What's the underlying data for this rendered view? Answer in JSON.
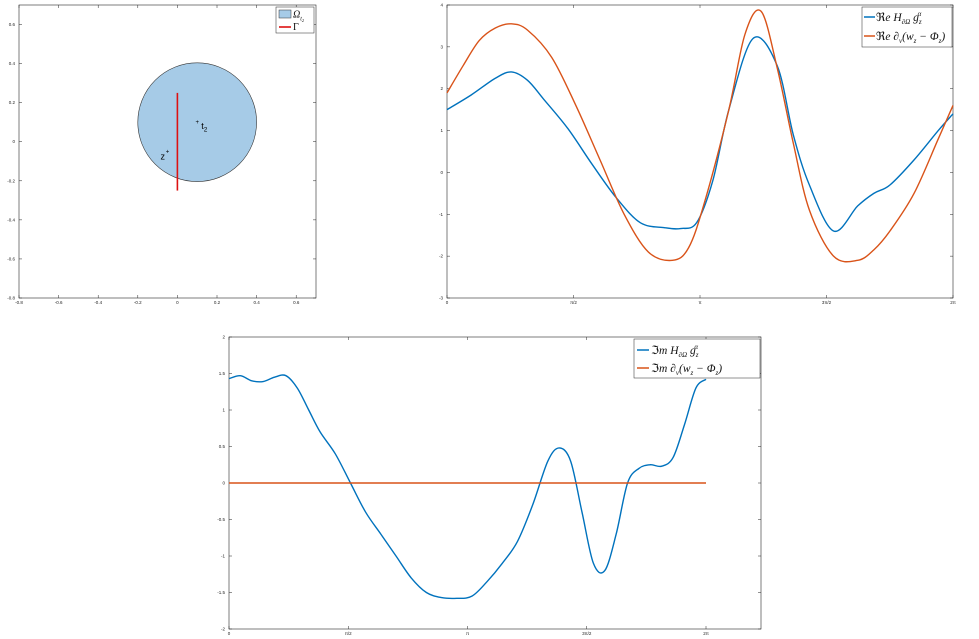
{
  "colors": {
    "blue": "#0072BD",
    "orange": "#D95319",
    "disk_fill": "#A6CBE7",
    "gamma_red": "#DD1111",
    "axis": "#262626"
  },
  "chart_data": [
    {
      "type": "scatter",
      "title": "",
      "xlim": [
        -0.8,
        0.7
      ],
      "ylim": [
        -0.8,
        0.7
      ],
      "x_ticks": [
        -0.8,
        -0.6,
        -0.4,
        -0.2,
        0,
        0.2,
        0.4,
        0.6
      ],
      "y_ticks": [
        -0.8,
        -0.6,
        -0.4,
        -0.2,
        0,
        0.2,
        0.4,
        0.6
      ],
      "legend": [
        "Ω_{t_2}",
        "Γ"
      ],
      "legend_position": "top-right",
      "disk": {
        "center": [
          0.1,
          0.1
        ],
        "radius": 0.3
      },
      "segment": {
        "x": 0,
        "y": [
          -0.25,
          0.25
        ]
      },
      "points": [
        {
          "label": "t_2",
          "x": 0.1,
          "y": 0.1
        },
        {
          "label": "z",
          "x": -0.05,
          "y": -0.05
        }
      ]
    },
    {
      "type": "line",
      "xlim": [
        0,
        6.2832
      ],
      "ylim": [
        -3,
        4
      ],
      "x_tick_labels": [
        "0",
        "π/2",
        "π",
        "3π/2",
        "2π"
      ],
      "x_ticks": [
        0,
        1.5708,
        3.1416,
        4.7124,
        6.2832
      ],
      "y_ticks": [
        -3,
        -2,
        -1,
        0,
        1,
        2,
        3,
        4
      ],
      "legend_position": "top-right",
      "series": [
        {
          "name": "ℜe H∂Ω g_z^α",
          "color": "#0072BD",
          "x": [
            0,
            0.3,
            0.6,
            0.8,
            1.0,
            1.2,
            1.5,
            1.8,
            2.1,
            2.4,
            2.7,
            2.9,
            3.1,
            3.3,
            3.5,
            3.8,
            4.1,
            4.3,
            4.5,
            4.8,
            5.1,
            5.3,
            5.5,
            5.8,
            6.1,
            6.2832
          ],
          "y": [
            1.5,
            1.85,
            2.25,
            2.4,
            2.2,
            1.75,
            1.05,
            0.2,
            -0.6,
            -1.2,
            -1.32,
            -1.34,
            -1.2,
            -0.2,
            1.5,
            3.2,
            2.55,
            0.9,
            -0.3,
            -1.4,
            -0.8,
            -0.5,
            -0.3,
            0.3,
            1.0,
            1.4
          ]
        },
        {
          "name": "ℜe ∂ν(w_z − Φ_z)",
          "color": "#D95319",
          "x": [
            0,
            0.2,
            0.4,
            0.6,
            0.8,
            1.0,
            1.3,
            1.6,
            1.9,
            2.2,
            2.5,
            2.8,
            3.0,
            3.2,
            3.5,
            3.7,
            3.9,
            4.1,
            4.3,
            4.5,
            4.8,
            5.1,
            5.3,
            5.5,
            5.8,
            6.1,
            6.2832
          ],
          "y": [
            1.9,
            2.55,
            3.15,
            3.45,
            3.55,
            3.4,
            2.75,
            1.6,
            0.3,
            -1.0,
            -1.9,
            -2.1,
            -1.8,
            -0.7,
            1.5,
            3.3,
            3.85,
            2.5,
            0.7,
            -0.9,
            -2.0,
            -2.1,
            -1.85,
            -1.4,
            -0.5,
            0.8,
            1.6
          ]
        }
      ]
    },
    {
      "type": "line",
      "xlim": [
        0,
        6.2832
      ],
      "ylim": [
        -2,
        2
      ],
      "x_tick_labels": [
        "0",
        "π/2",
        "π",
        "3π/2",
        "2π"
      ],
      "x_ticks": [
        0,
        1.5708,
        3.1416,
        4.7124,
        6.2832
      ],
      "y_ticks": [
        -2,
        -1.5,
        -1,
        -0.5,
        0,
        0.5,
        1,
        1.5,
        2
      ],
      "legend_position": "top-right",
      "series": [
        {
          "name": "ℑm H∂Ω g_z^α",
          "color": "#0072BD",
          "x": [
            0,
            0.15,
            0.3,
            0.45,
            0.6,
            0.75,
            0.9,
            1.05,
            1.2,
            1.4,
            1.6,
            1.8,
            2.0,
            2.2,
            2.4,
            2.6,
            2.8,
            3.0,
            3.2,
            3.4,
            3.6,
            3.8,
            4.0,
            4.2,
            4.35,
            4.5,
            4.65,
            4.8,
            4.95,
            5.1,
            5.25,
            5.4,
            5.55,
            5.7,
            5.85,
            6.0,
            6.15,
            6.2832
          ],
          "y": [
            1.43,
            1.47,
            1.4,
            1.39,
            1.45,
            1.47,
            1.3,
            1.0,
            0.7,
            0.4,
            0.0,
            -0.4,
            -0.7,
            -1.0,
            -1.3,
            -1.5,
            -1.57,
            -1.58,
            -1.55,
            -1.35,
            -1.1,
            -0.8,
            -0.3,
            0.3,
            0.48,
            0.3,
            -0.4,
            -1.1,
            -1.2,
            -0.7,
            0.0,
            0.2,
            0.25,
            0.23,
            0.35,
            0.8,
            1.3,
            1.42
          ]
        },
        {
          "name": "ℑm ∂ν(w_z − Φ_z)",
          "color": "#D95319",
          "x": [
            0,
            6.2832
          ],
          "y": [
            0,
            0
          ]
        }
      ]
    }
  ]
}
